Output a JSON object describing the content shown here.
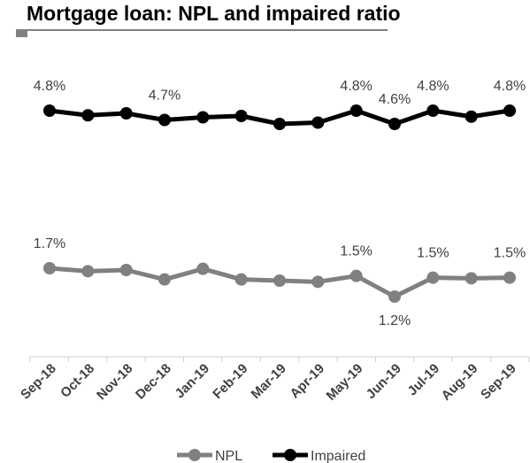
{
  "chart_data": {
    "type": "line",
    "title": "Mortgage loan: NPL and impaired ratio",
    "categories": [
      "Sep-18",
      "Oct-18",
      "Nov-18",
      "Dec-18",
      "Jan-19",
      "Feb-19",
      "Mar-19",
      "Apr-19",
      "May-19",
      "Jun-19",
      "Jul-19",
      "Aug-19",
      "Sep-19"
    ],
    "series": [
      {
        "name": "NPL",
        "color": "#808080",
        "values": [
          1.68,
          1.63,
          1.65,
          1.49,
          1.67,
          1.49,
          1.47,
          1.45,
          1.55,
          1.2,
          1.52,
          1.51,
          1.52
        ],
        "labels": [
          "1.7%",
          null,
          null,
          null,
          null,
          null,
          null,
          null,
          "1.5%",
          "1.2%",
          "1.5%",
          null,
          "1.5%"
        ],
        "label_position": [
          "above",
          null,
          null,
          null,
          null,
          null,
          null,
          null,
          "above",
          "below",
          "above",
          null,
          "above"
        ]
      },
      {
        "name": "Impaired",
        "color": "#000000",
        "values": [
          4.8,
          4.73,
          4.76,
          4.66,
          4.7,
          4.72,
          4.6,
          4.62,
          4.8,
          4.6,
          4.8,
          4.71,
          4.8
        ],
        "labels": [
          "4.8%",
          null,
          null,
          "4.7%",
          null,
          null,
          null,
          null,
          "4.8%",
          "4.6%",
          "4.8%",
          null,
          "4.8%"
        ],
        "label_position": [
          "above",
          null,
          null,
          "above",
          null,
          null,
          null,
          null,
          "above",
          "above",
          "above",
          null,
          "above"
        ]
      }
    ],
    "legend": "bottom",
    "grid": false,
    "axes_visible": {
      "x": true,
      "y": false
    }
  }
}
